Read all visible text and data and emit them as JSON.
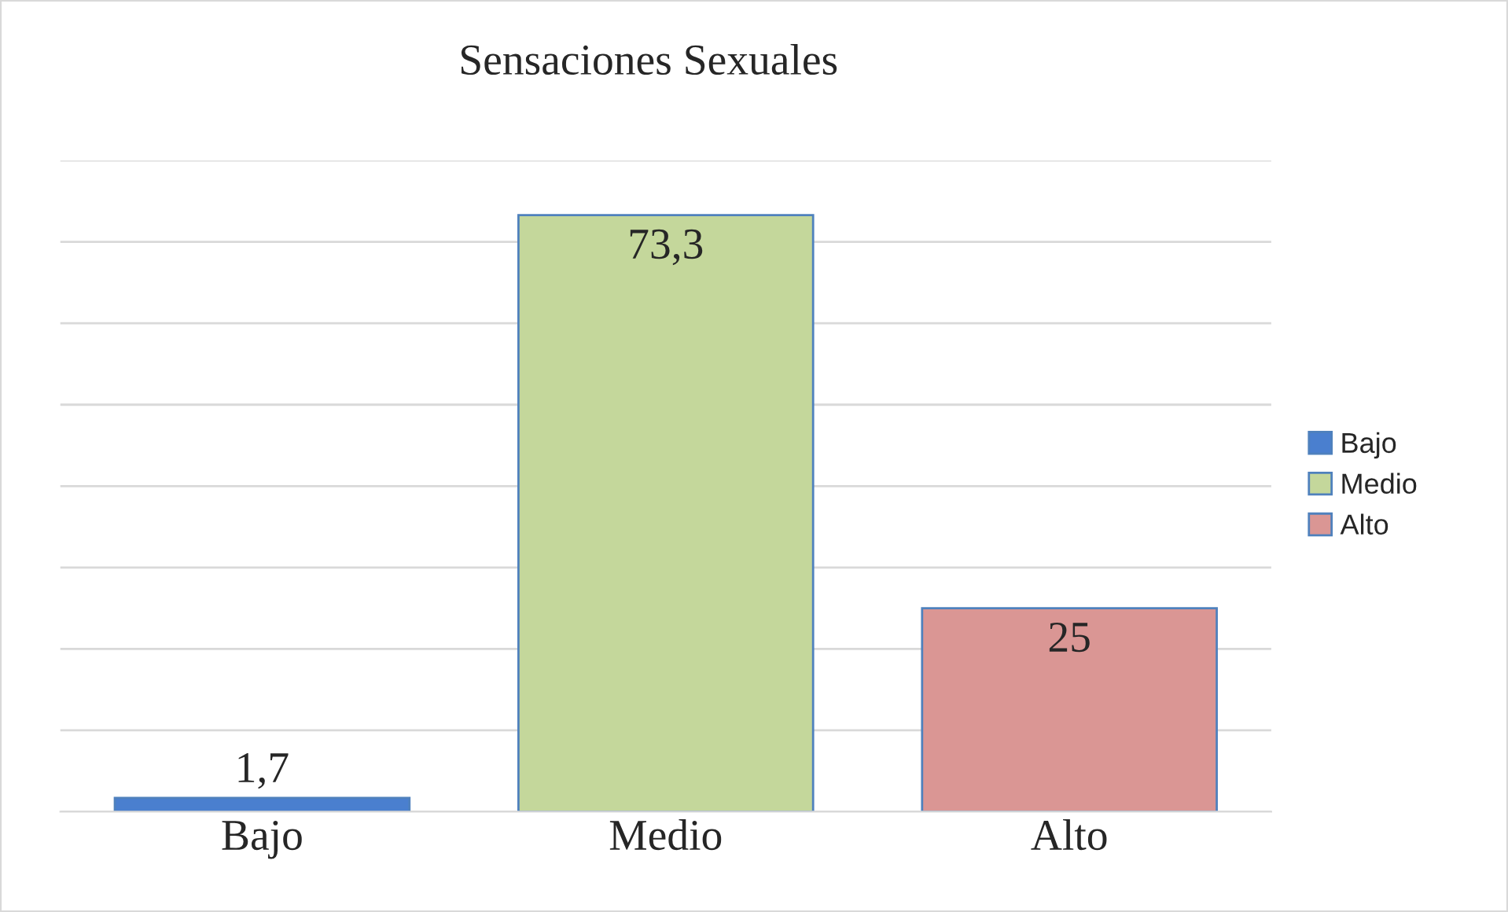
{
  "chart_data": {
    "type": "bar",
    "title": "Sensaciones Sexuales",
    "categories": [
      "Bajo",
      "Medio",
      "Alto"
    ],
    "series": [
      {
        "name": "Bajo",
        "color": "#4a7fcf",
        "values": [
          1.7,
          null,
          null
        ],
        "value_labels": [
          "1,7",
          null,
          null
        ]
      },
      {
        "name": "Medio",
        "color": "#c4d79b",
        "values": [
          null,
          73.3,
          null
        ],
        "value_labels": [
          null,
          "73,3",
          null
        ]
      },
      {
        "name": "Alto",
        "color": "#da9694",
        "values": [
          null,
          null,
          25
        ],
        "value_labels": [
          null,
          null,
          "25"
        ]
      }
    ],
    "ylim": [
      0,
      80
    ],
    "yticks": [
      {
        "value": 0,
        "label": null
      },
      {
        "value": 10,
        "label": null
      },
      {
        "value": 20,
        "label": null
      },
      {
        "value": 30,
        "label": null
      },
      {
        "value": 40,
        "label": null
      },
      {
        "value": 50,
        "label": null
      },
      {
        "value": 60,
        "label": null
      },
      {
        "value": 70,
        "label": null
      },
      {
        "value": 80,
        "label": null
      }
    ],
    "grid": "y",
    "legend": "right",
    "tick_labels": "x"
  }
}
